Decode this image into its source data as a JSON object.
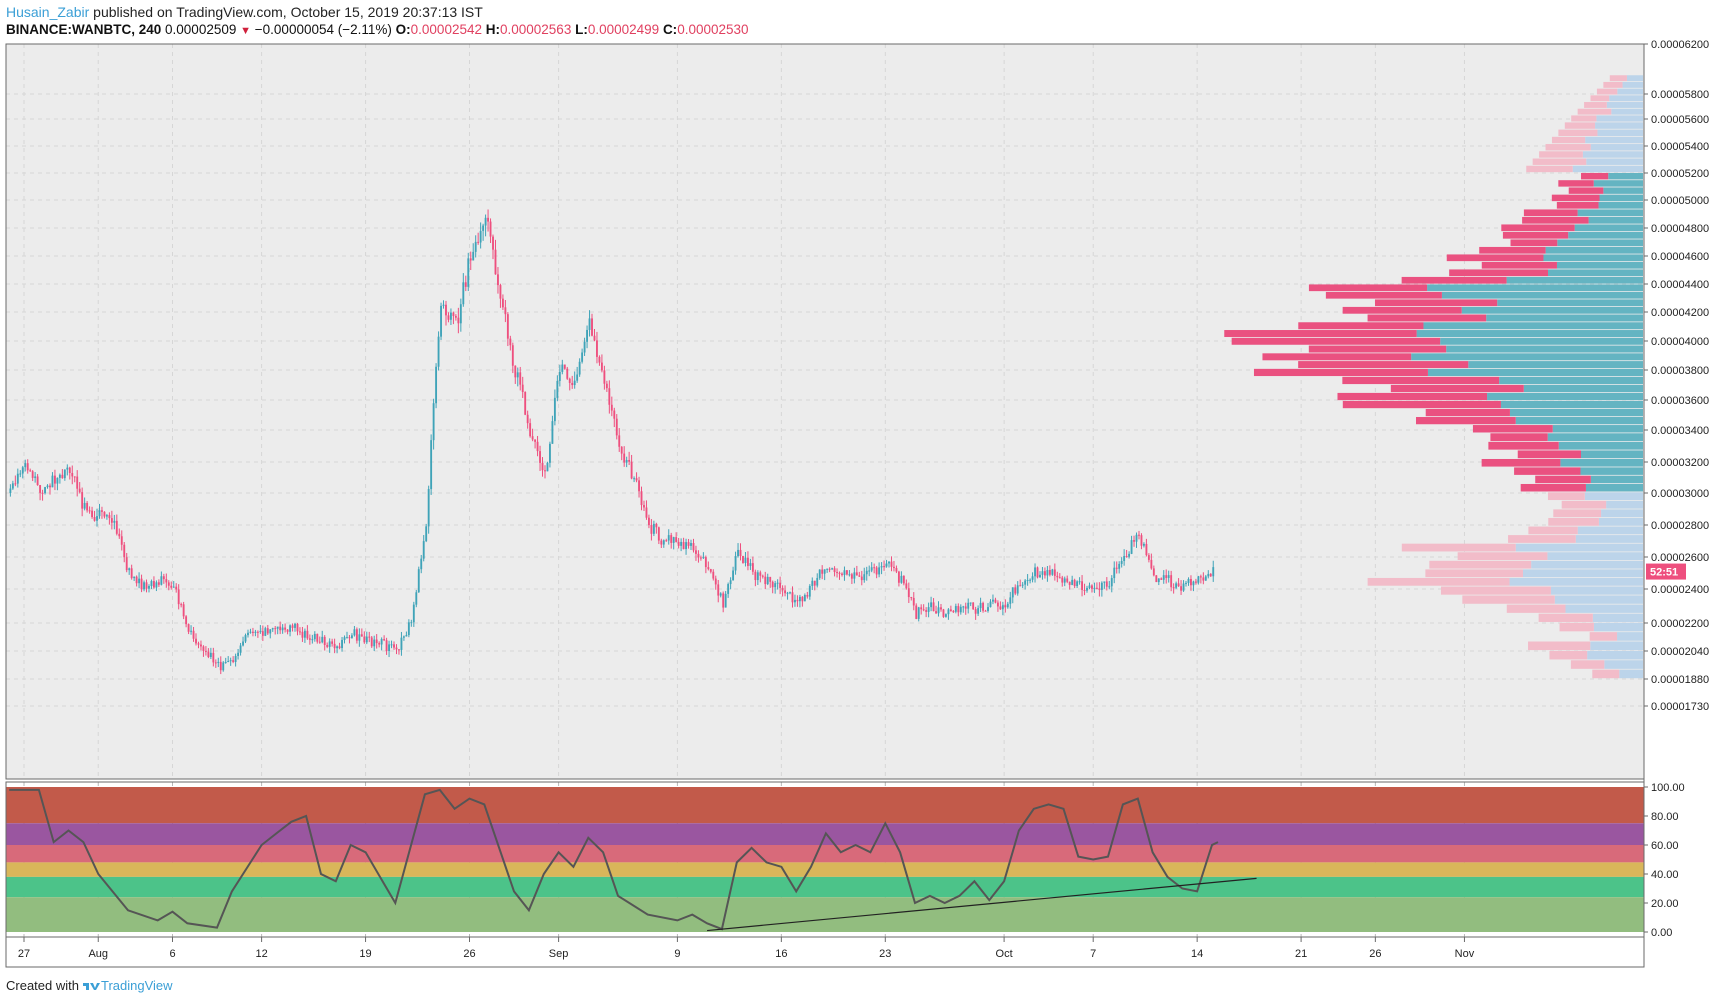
{
  "header": {
    "author": "Husain_Zabir",
    "published_text": "published on TradingView.com, October 15, 2019 20:37:13 IST",
    "symbol": "BINANCE:WANBTC, 240",
    "last": "0.00002509",
    "change_arrow": "▼",
    "change": "−0.00000054 (−2.11%)",
    "o_label": "O:",
    "o": "0.00002542",
    "h_label": "H:",
    "h": "0.00002563",
    "l_label": "L:",
    "l": "0.00002499",
    "c_label": "C:",
    "c": "0.00002530"
  },
  "footer": {
    "created_with": "Created with",
    "brand": "TradingView"
  },
  "colors": {
    "up": "#3fa3b8",
    "down": "#ee4f7e",
    "vp_up": "#64b4c2",
    "vp_down": "#ea5180",
    "vp_up_light": "#bcd4ea",
    "vp_down_light": "#f2bcc9",
    "rsi_line": "#555555",
    "bg": "#ededed"
  },
  "chart_data": [
    {
      "type": "candlestick",
      "title": "",
      "price_axis_labels": [
        "0.00006200",
        "0.00005800",
        "0.00005600",
        "0.00005400",
        "0.00005200",
        "0.00005000",
        "0.00004800",
        "0.00004600",
        "0.00004400",
        "0.00004200",
        "0.00004000",
        "0.00003800",
        "0.00003600",
        "0.00003400",
        "0.00003200",
        "0.00003000",
        "0.00002800",
        "0.00002600",
        "0.00002400",
        "0.00002200",
        "0.00002040",
        "0.00001880",
        "0.00001730"
      ],
      "price_axis_values": [
        6.2,
        5.8,
        5.6,
        5.4,
        5.2,
        5.0,
        4.8,
        4.6,
        4.4,
        4.2,
        4.0,
        3.8,
        3.6,
        3.4,
        3.2,
        3.0,
        2.8,
        2.6,
        2.4,
        2.2,
        2.04,
        1.88,
        1.73
      ],
      "price_unit_scale": "values ×1e-5 BTC",
      "x_axis_labels": [
        "27",
        "Aug",
        "6",
        "12",
        "19",
        "26",
        "Sep",
        "9",
        "16",
        "23",
        "Oct",
        "7",
        "14",
        "21",
        "26",
        "Nov"
      ],
      "x_axis_dates": [
        "2019-07-27",
        "2019-08-01",
        "2019-08-06",
        "2019-08-12",
        "2019-08-19",
        "2019-08-26",
        "2019-09-01",
        "2019-09-09",
        "2019-09-16",
        "2019-09-23",
        "2019-10-01",
        "2019-10-07",
        "2019-10-14",
        "2019-10-21",
        "2019-10-26",
        "2019-11-01"
      ],
      "countdown_label": "52:51",
      "last_price": 2.509,
      "price_path": [
        {
          "date": "2019-07-26",
          "price": 3.0
        },
        {
          "date": "2019-07-27",
          "price": 3.2
        },
        {
          "date": "2019-07-28",
          "price": 3.0
        },
        {
          "date": "2019-07-29",
          "price": 3.1
        },
        {
          "date": "2019-07-30",
          "price": 3.15
        },
        {
          "date": "2019-07-31",
          "price": 2.9
        },
        {
          "date": "2019-08-01",
          "price": 2.85
        },
        {
          "date": "2019-08-02",
          "price": 2.8
        },
        {
          "date": "2019-08-03",
          "price": 2.5
        },
        {
          "date": "2019-08-04",
          "price": 2.42
        },
        {
          "date": "2019-08-05",
          "price": 2.45
        },
        {
          "date": "2019-08-06",
          "price": 2.42
        },
        {
          "date": "2019-08-07",
          "price": 2.15
        },
        {
          "date": "2019-08-08",
          "price": 2.05
        },
        {
          "date": "2019-08-09",
          "price": 1.95
        },
        {
          "date": "2019-08-10",
          "price": 2.0
        },
        {
          "date": "2019-08-11",
          "price": 2.12
        },
        {
          "date": "2019-08-12",
          "price": 2.15
        },
        {
          "date": "2019-08-13",
          "price": 2.15
        },
        {
          "date": "2019-08-14",
          "price": 2.18
        },
        {
          "date": "2019-08-15",
          "price": 2.12
        },
        {
          "date": "2019-08-16",
          "price": 2.1
        },
        {
          "date": "2019-08-17",
          "price": 2.05
        },
        {
          "date": "2019-08-18",
          "price": 2.14
        },
        {
          "date": "2019-08-19",
          "price": 2.1
        },
        {
          "date": "2019-08-20",
          "price": 2.08
        },
        {
          "date": "2019-08-21",
          "price": 2.05
        },
        {
          "date": "2019-08-22",
          "price": 2.2
        },
        {
          "date": "2019-08-23",
          "price": 2.8
        },
        {
          "date": "2019-08-24",
          "price": 4.3
        },
        {
          "date": "2019-08-25",
          "price": 4.1
        },
        {
          "date": "2019-08-26",
          "price": 4.6
        },
        {
          "date": "2019-08-27",
          "price": 4.9
        },
        {
          "date": "2019-08-28",
          "price": 4.3
        },
        {
          "date": "2019-08-29",
          "price": 3.8
        },
        {
          "date": "2019-08-30",
          "price": 3.4
        },
        {
          "date": "2019-08-31",
          "price": 3.1
        },
        {
          "date": "2019-09-01",
          "price": 3.8
        },
        {
          "date": "2019-09-02",
          "price": 3.7
        },
        {
          "date": "2019-09-03",
          "price": 4.1
        },
        {
          "date": "2019-09-04",
          "price": 3.7
        },
        {
          "date": "2019-09-05",
          "price": 3.3
        },
        {
          "date": "2019-09-06",
          "price": 3.1
        },
        {
          "date": "2019-09-07",
          "price": 2.8
        },
        {
          "date": "2019-09-08",
          "price": 2.7
        },
        {
          "date": "2019-09-09",
          "price": 2.7
        },
        {
          "date": "2019-09-10",
          "price": 2.65
        },
        {
          "date": "2019-09-11",
          "price": 2.55
        },
        {
          "date": "2019-09-12",
          "price": 2.32
        },
        {
          "date": "2019-09-13",
          "price": 2.65
        },
        {
          "date": "2019-09-14",
          "price": 2.5
        },
        {
          "date": "2019-09-15",
          "price": 2.45
        },
        {
          "date": "2019-09-16",
          "price": 2.38
        },
        {
          "date": "2019-09-17",
          "price": 2.32
        },
        {
          "date": "2019-09-18",
          "price": 2.42
        },
        {
          "date": "2019-09-19",
          "price": 2.55
        },
        {
          "date": "2019-09-20",
          "price": 2.5
        },
        {
          "date": "2019-09-21",
          "price": 2.48
        },
        {
          "date": "2019-09-22",
          "price": 2.5
        },
        {
          "date": "2019-09-23",
          "price": 2.55
        },
        {
          "date": "2019-09-24",
          "price": 2.45
        },
        {
          "date": "2019-09-25",
          "price": 2.25
        },
        {
          "date": "2019-09-26",
          "price": 2.3
        },
        {
          "date": "2019-09-27",
          "price": 2.25
        },
        {
          "date": "2019-09-28",
          "price": 2.3
        },
        {
          "date": "2019-09-29",
          "price": 2.28
        },
        {
          "date": "2019-09-30",
          "price": 2.3
        },
        {
          "date": "2019-10-01",
          "price": 2.32
        },
        {
          "date": "2019-10-02",
          "price": 2.45
        },
        {
          "date": "2019-10-03",
          "price": 2.5
        },
        {
          "date": "2019-10-04",
          "price": 2.5
        },
        {
          "date": "2019-10-05",
          "price": 2.45
        },
        {
          "date": "2019-10-06",
          "price": 2.42
        },
        {
          "date": "2019-10-07",
          "price": 2.42
        },
        {
          "date": "2019-10-08",
          "price": 2.45
        },
        {
          "date": "2019-10-09",
          "price": 2.6
        },
        {
          "date": "2019-10-10",
          "price": 2.75
        },
        {
          "date": "2019-10-11",
          "price": 2.45
        },
        {
          "date": "2019-10-12",
          "price": 2.45
        },
        {
          "date": "2019-10-13",
          "price": 2.42
        },
        {
          "date": "2019-10-14",
          "price": 2.45
        },
        {
          "date": "2019-10-15",
          "price": 2.51
        }
      ]
    },
    {
      "type": "volume-profile",
      "price_levels_top": 5.95,
      "price_levels_bottom": 1.88,
      "rows": 76,
      "highlight_range": [
        3.0,
        5.2
      ],
      "peak_level": 3.98
    },
    {
      "type": "line",
      "indicator": "RSI",
      "y_axis_labels": [
        "100.00",
        "80.00",
        "60.00",
        "40.00",
        "20.00",
        "0.00"
      ],
      "y_axis_values": [
        100,
        80,
        60,
        40,
        20,
        0
      ],
      "ylim": [
        0,
        100
      ],
      "bands": [
        {
          "from": 75,
          "to": 100,
          "color": "#c25a4a"
        },
        {
          "from": 60,
          "to": 75,
          "color": "#9a56a0"
        },
        {
          "from": 48,
          "to": 60,
          "color": "#d86a7a"
        },
        {
          "from": 38,
          "to": 48,
          "color": "#d9b65a"
        },
        {
          "from": 24,
          "to": 38,
          "color": "#4cc389"
        },
        {
          "from": 0,
          "to": 24,
          "color": "#92bd7f"
        }
      ],
      "rsi_path": [
        {
          "date": "2019-07-26",
          "rsi": 98
        },
        {
          "date": "2019-07-28",
          "rsi": 98
        },
        {
          "date": "2019-07-29",
          "rsi": 62
        },
        {
          "date": "2019-07-30",
          "rsi": 70
        },
        {
          "date": "2019-07-31",
          "rsi": 62
        },
        {
          "date": "2019-08-01",
          "rsi": 40
        },
        {
          "date": "2019-08-03",
          "rsi": 15
        },
        {
          "date": "2019-08-05",
          "rsi": 8
        },
        {
          "date": "2019-08-06",
          "rsi": 14
        },
        {
          "date": "2019-08-07",
          "rsi": 6
        },
        {
          "date": "2019-08-09",
          "rsi": 3
        },
        {
          "date": "2019-08-10",
          "rsi": 28
        },
        {
          "date": "2019-08-12",
          "rsi": 60
        },
        {
          "date": "2019-08-13",
          "rsi": 68
        },
        {
          "date": "2019-08-14",
          "rsi": 76
        },
        {
          "date": "2019-08-15",
          "rsi": 80
        },
        {
          "date": "2019-08-16",
          "rsi": 40
        },
        {
          "date": "2019-08-17",
          "rsi": 35
        },
        {
          "date": "2019-08-18",
          "rsi": 60
        },
        {
          "date": "2019-08-19",
          "rsi": 55
        },
        {
          "date": "2019-08-21",
          "rsi": 20
        },
        {
          "date": "2019-08-23",
          "rsi": 95
        },
        {
          "date": "2019-08-24",
          "rsi": 98
        },
        {
          "date": "2019-08-25",
          "rsi": 85
        },
        {
          "date": "2019-08-26",
          "rsi": 92
        },
        {
          "date": "2019-08-27",
          "rsi": 88
        },
        {
          "date": "2019-08-29",
          "rsi": 28
        },
        {
          "date": "2019-08-30",
          "rsi": 15
        },
        {
          "date": "2019-08-31",
          "rsi": 40
        },
        {
          "date": "2019-09-01",
          "rsi": 55
        },
        {
          "date": "2019-09-02",
          "rsi": 45
        },
        {
          "date": "2019-09-03",
          "rsi": 65
        },
        {
          "date": "2019-09-04",
          "rsi": 55
        },
        {
          "date": "2019-09-05",
          "rsi": 25
        },
        {
          "date": "2019-09-07",
          "rsi": 12
        },
        {
          "date": "2019-09-09",
          "rsi": 8
        },
        {
          "date": "2019-09-10",
          "rsi": 12
        },
        {
          "date": "2019-09-11",
          "rsi": 6
        },
        {
          "date": "2019-09-12",
          "rsi": 2
        },
        {
          "date": "2019-09-13",
          "rsi": 48
        },
        {
          "date": "2019-09-14",
          "rsi": 58
        },
        {
          "date": "2019-09-15",
          "rsi": 48
        },
        {
          "date": "2019-09-16",
          "rsi": 45
        },
        {
          "date": "2019-09-17",
          "rsi": 28
        },
        {
          "date": "2019-09-18",
          "rsi": 45
        },
        {
          "date": "2019-09-19",
          "rsi": 68
        },
        {
          "date": "2019-09-20",
          "rsi": 55
        },
        {
          "date": "2019-09-21",
          "rsi": 60
        },
        {
          "date": "2019-09-22",
          "rsi": 55
        },
        {
          "date": "2019-09-23",
          "rsi": 75
        },
        {
          "date": "2019-09-24",
          "rsi": 55
        },
        {
          "date": "2019-09-25",
          "rsi": 20
        },
        {
          "date": "2019-09-26",
          "rsi": 25
        },
        {
          "date": "2019-09-27",
          "rsi": 20
        },
        {
          "date": "2019-09-28",
          "rsi": 25
        },
        {
          "date": "2019-09-29",
          "rsi": 35
        },
        {
          "date": "2019-09-30",
          "rsi": 22
        },
        {
          "date": "2019-10-01",
          "rsi": 35
        },
        {
          "date": "2019-10-02",
          "rsi": 70
        },
        {
          "date": "2019-10-03",
          "rsi": 85
        },
        {
          "date": "2019-10-04",
          "rsi": 88
        },
        {
          "date": "2019-10-05",
          "rsi": 85
        },
        {
          "date": "2019-10-06",
          "rsi": 52
        },
        {
          "date": "2019-10-07",
          "rsi": 50
        },
        {
          "date": "2019-10-08",
          "rsi": 52
        },
        {
          "date": "2019-10-09",
          "rsi": 88
        },
        {
          "date": "2019-10-10",
          "rsi": 92
        },
        {
          "date": "2019-10-11",
          "rsi": 55
        },
        {
          "date": "2019-10-12",
          "rsi": 38
        },
        {
          "date": "2019-10-13",
          "rsi": 30
        },
        {
          "date": "2019-10-14",
          "rsi": 28
        },
        {
          "date": "2019-10-15",
          "rsi": 60
        },
        {
          "date": "2019-10-15",
          "rsi": 62
        }
      ],
      "trendline": [
        {
          "date": "2019-09-11",
          "rsi": 1
        },
        {
          "date": "2019-10-18",
          "rsi": 37
        }
      ]
    }
  ]
}
